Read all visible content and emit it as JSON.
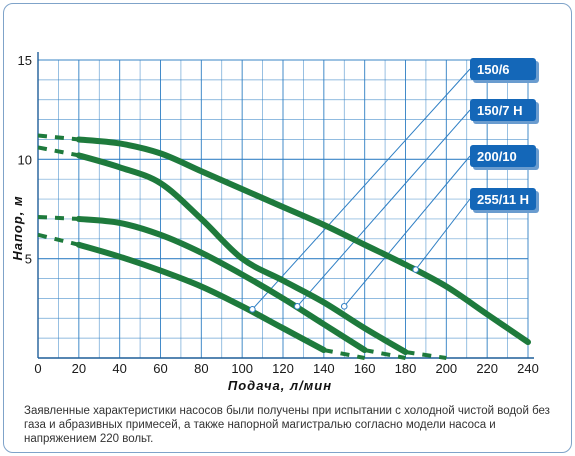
{
  "chart_data": {
    "type": "line",
    "xlabel": "Подача, л/мин",
    "ylabel": "Напор, м",
    "xlim": [
      0,
      240
    ],
    "ylim": [
      0,
      15
    ],
    "x_ticks": [
      "0",
      "20",
      "40",
      "60",
      "80",
      "100",
      "120",
      "140",
      "160",
      "180",
      "200",
      "220",
      "240"
    ],
    "y_ticks": [
      "5",
      "10",
      "15"
    ],
    "grid": true,
    "legend_placement": "right",
    "series": [
      {
        "name": "150/6",
        "points": [
          [
            20,
            5.7
          ],
          [
            40,
            5.1
          ],
          [
            60,
            4.4
          ],
          [
            80,
            3.6
          ],
          [
            100,
            2.6
          ],
          [
            120,
            1.5
          ],
          [
            140,
            0.4
          ]
        ],
        "extrapolated": [
          [
            0,
            6.2
          ],
          [
            20,
            5.7
          ],
          [
            140,
            0.4
          ],
          [
            160,
            0.0
          ]
        ],
        "marker": [
          105,
          2.45
        ]
      },
      {
        "name": "150/7 H",
        "points": [
          [
            20,
            7.0
          ],
          [
            40,
            6.8
          ],
          [
            60,
            6.2
          ],
          [
            80,
            5.3
          ],
          [
            100,
            4.2
          ],
          [
            120,
            3.0
          ],
          [
            140,
            1.7
          ],
          [
            160,
            0.4
          ]
        ],
        "extrapolated": [
          [
            0,
            7.1
          ],
          [
            20,
            7.0
          ],
          [
            160,
            0.4
          ],
          [
            180,
            0.0
          ]
        ],
        "marker": [
          127,
          2.6
        ]
      },
      {
        "name": "200/10",
        "points": [
          [
            20,
            10.2
          ],
          [
            40,
            9.6
          ],
          [
            60,
            8.8
          ],
          [
            80,
            7.0
          ],
          [
            100,
            5.0
          ],
          [
            120,
            3.9
          ],
          [
            140,
            2.8
          ],
          [
            160,
            1.5
          ],
          [
            180,
            0.3
          ]
        ],
        "extrapolated": [
          [
            0,
            10.6
          ],
          [
            20,
            10.2
          ],
          [
            180,
            0.3
          ],
          [
            200,
            0.0
          ]
        ],
        "marker": [
          150,
          2.6
        ]
      },
      {
        "name": "255/11 H",
        "points": [
          [
            20,
            11.0
          ],
          [
            40,
            10.8
          ],
          [
            60,
            10.3
          ],
          [
            80,
            9.4
          ],
          [
            100,
            8.5
          ],
          [
            120,
            7.6
          ],
          [
            140,
            6.7
          ],
          [
            160,
            5.7
          ],
          [
            180,
            4.7
          ],
          [
            200,
            3.6
          ],
          [
            220,
            2.2
          ],
          [
            240,
            0.8
          ]
        ],
        "extrapolated": [
          [
            0,
            11.2
          ],
          [
            20,
            11.0
          ]
        ],
        "marker": [
          185,
          4.45
        ]
      }
    ],
    "note": "Заявленные характеристики насосов были получены при испытании с холодной чистой водой без газа и абразивных примесей, а также напорной магистралью согласно модели насоса и напряжением 220 вольт."
  },
  "colors": {
    "grid": "#2f7fc4",
    "curve": "#1e7a3c",
    "legend_fill": "#1467b8",
    "legend_shadow": "#6a9ccf",
    "leader": "#2f7fc4",
    "marker_fill": "#ffffff"
  }
}
